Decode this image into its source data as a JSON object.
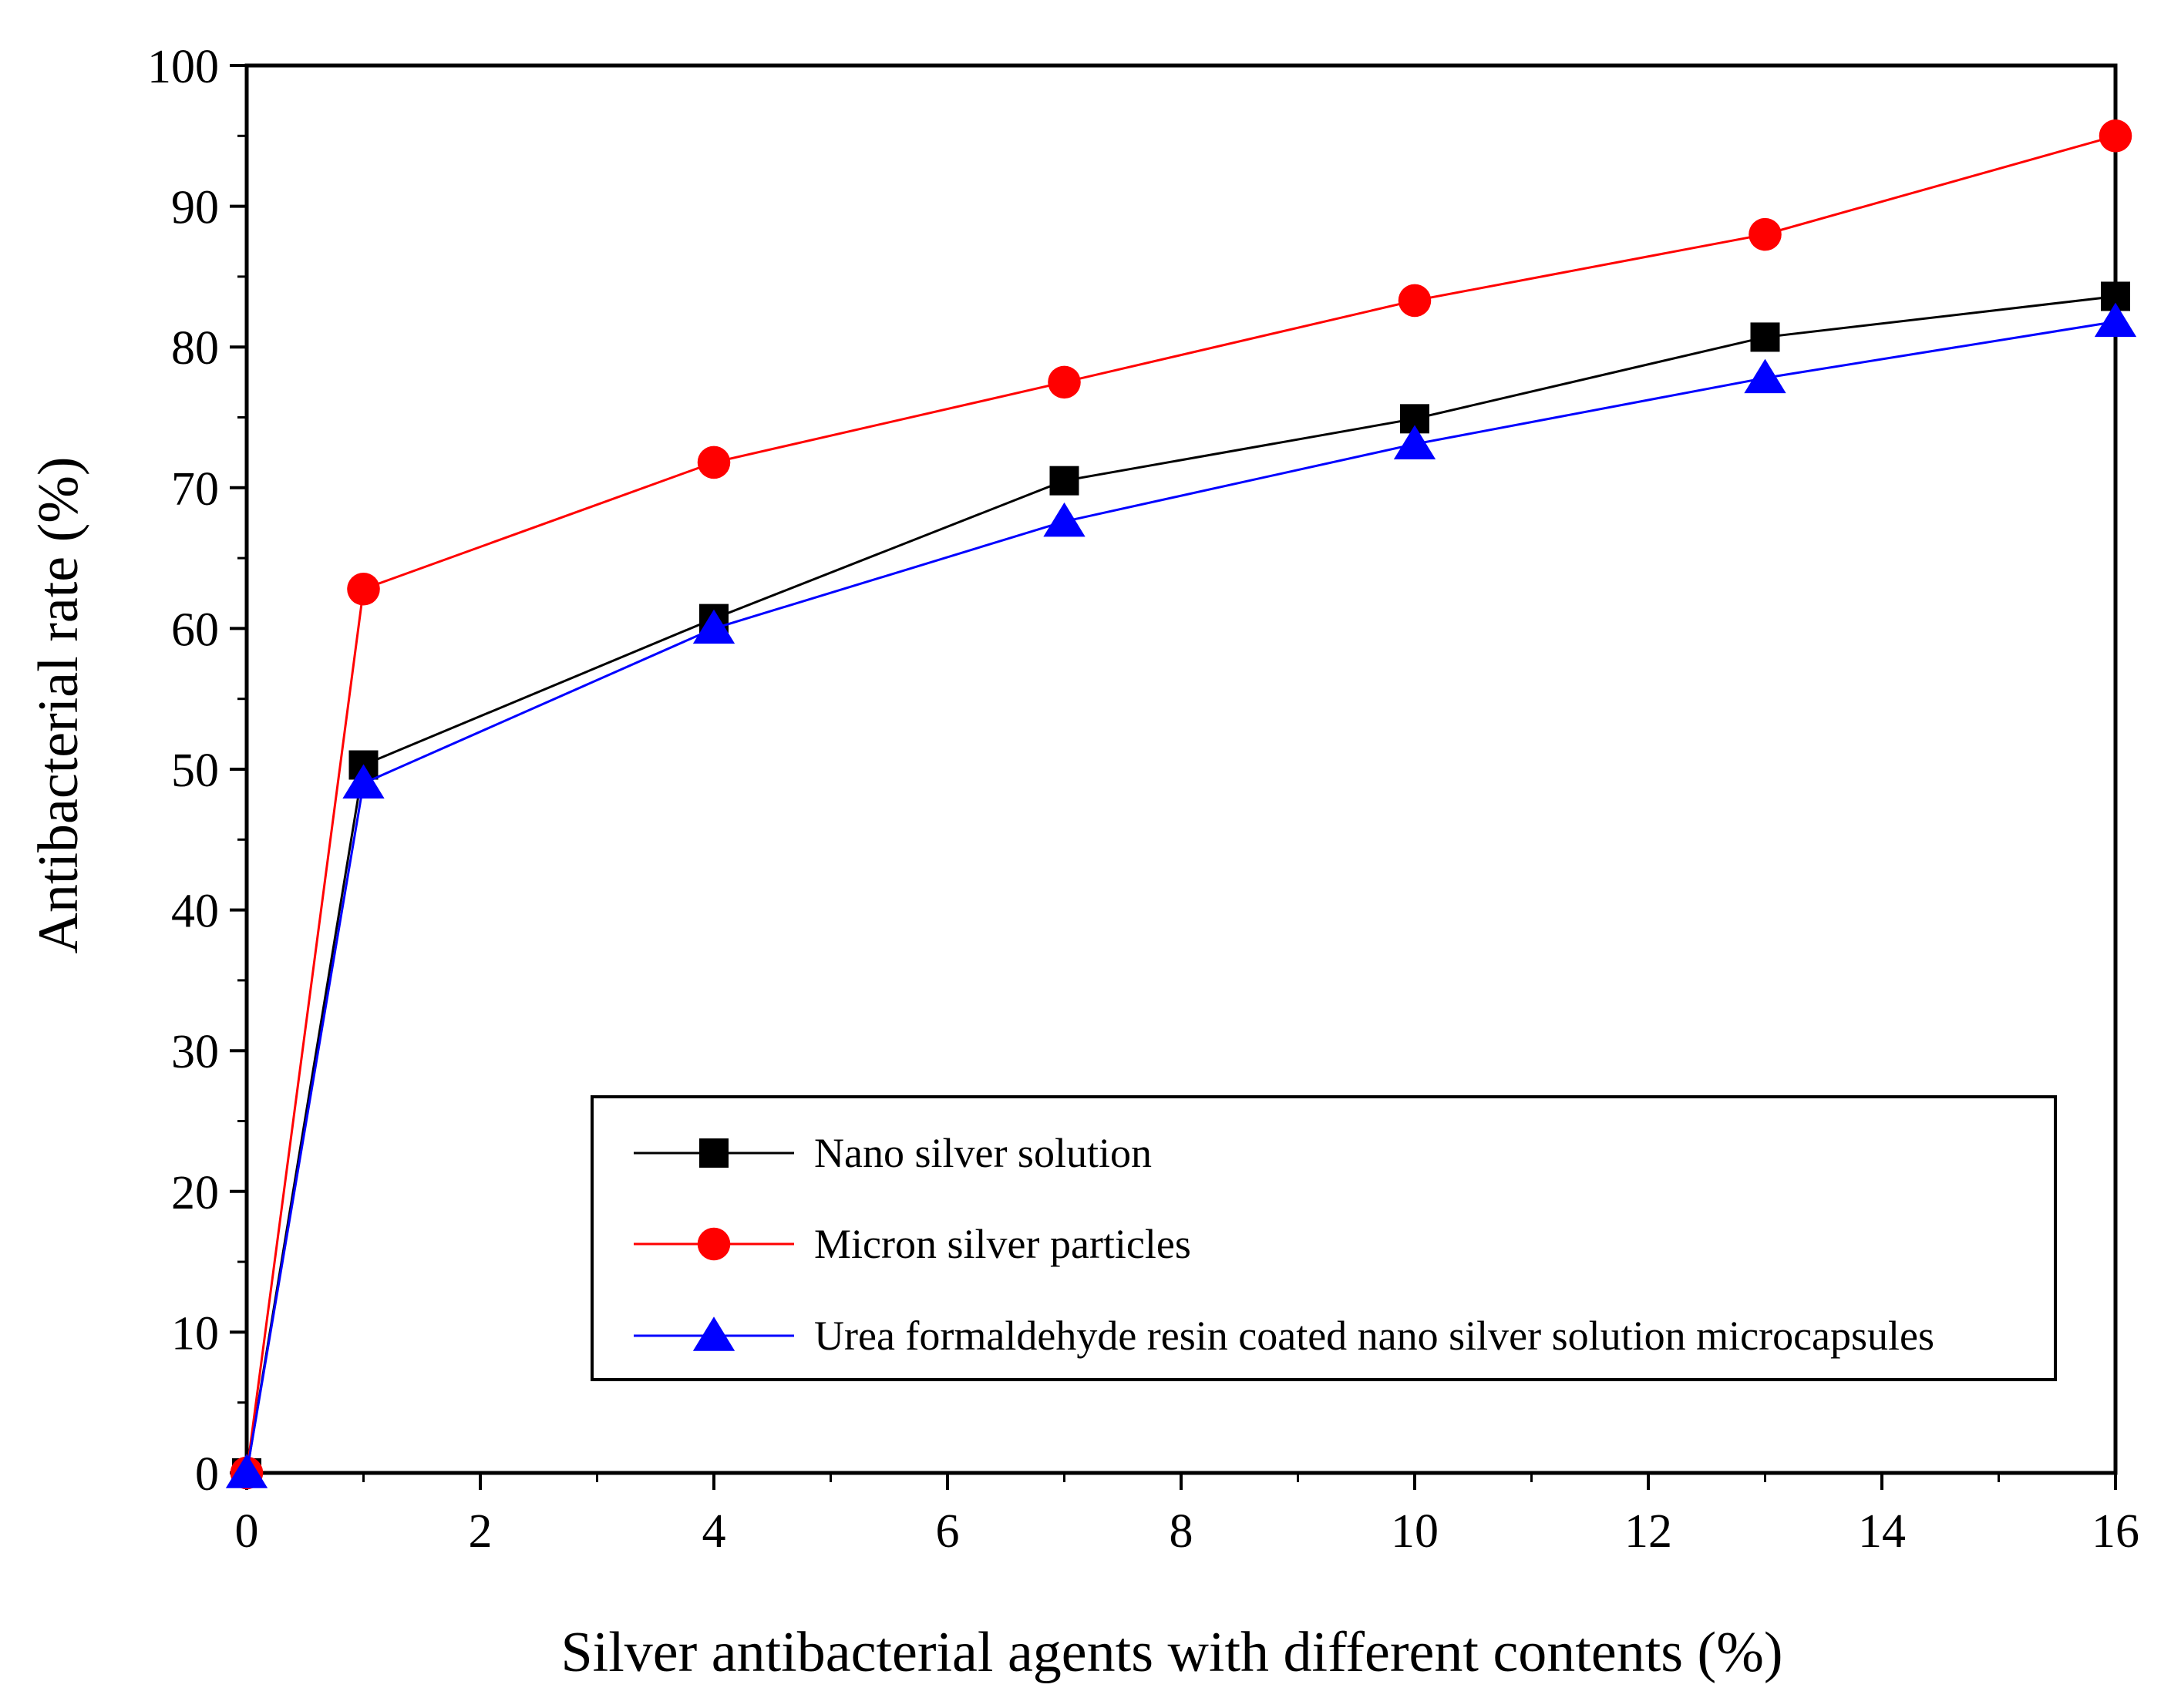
{
  "chart_data": {
    "type": "line",
    "title": "",
    "xlabel": "Silver antibacterial agents with different contents (%)",
    "ylabel": "Antibacterial rate (%)",
    "xlim": [
      0,
      16
    ],
    "ylim": [
      0,
      100
    ],
    "xticks": [
      "0",
      "2",
      "4",
      "6",
      "8",
      "10",
      "12",
      "14",
      "16"
    ],
    "yticks": [
      "0",
      "10",
      "20",
      "30",
      "40",
      "50",
      "60",
      "70",
      "80",
      "90",
      "100"
    ],
    "grid": false,
    "legend_position": "bottom-right",
    "x": [
      0,
      1,
      4,
      7,
      10,
      13,
      16
    ],
    "series": [
      {
        "name": "Nano silver solution",
        "color": "#000000",
        "marker": "square",
        "values": [
          0,
          50.3,
          60.7,
          70.5,
          74.9,
          80.7,
          83.6
        ]
      },
      {
        "name": "Micron silver particles",
        "color": "#ff0000",
        "marker": "circle",
        "values": [
          0,
          62.8,
          71.8,
          77.5,
          83.3,
          88.0,
          95.0
        ]
      },
      {
        "name": "Urea formaldehyde resin coated nano silver solution microcapsules",
        "color": "#0000ff",
        "marker": "triangle",
        "values": [
          0,
          49.0,
          60.0,
          67.6,
          73.1,
          77.8,
          81.8
        ]
      }
    ]
  }
}
